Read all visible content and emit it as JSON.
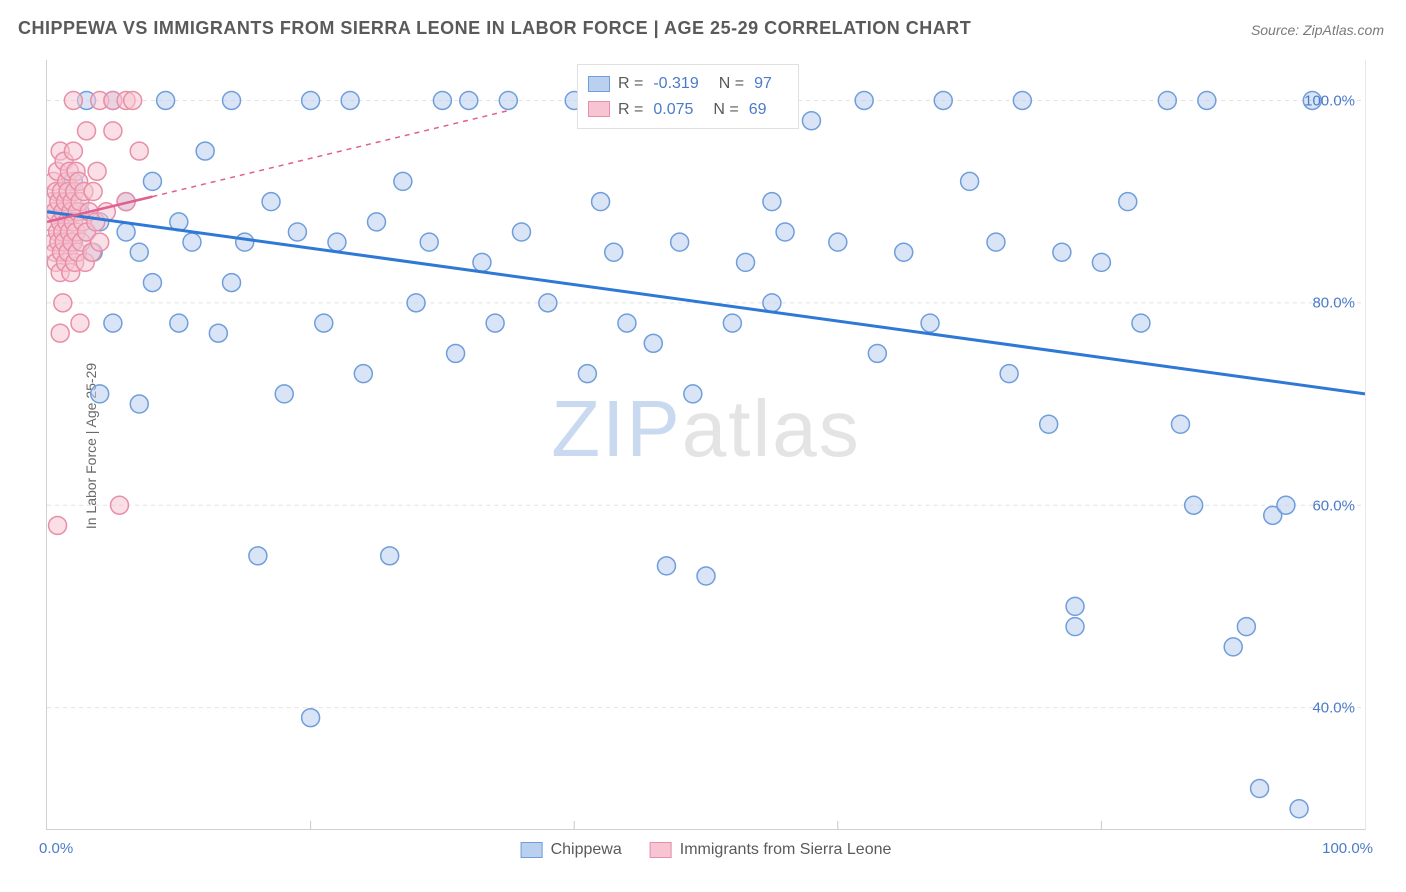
{
  "title": "CHIPPEWA VS IMMIGRANTS FROM SIERRA LEONE IN LABOR FORCE | AGE 25-29 CORRELATION CHART",
  "source_label": "Source: ZipAtlas.com",
  "y_axis_label": "In Labor Force | Age 25-29",
  "watermark": {
    "part1": "ZIP",
    "part2": "atlas"
  },
  "chart": {
    "type": "scatter",
    "xlim": [
      0,
      100
    ],
    "ylim": [
      28,
      104
    ],
    "y_ticks": [
      40,
      60,
      80,
      100
    ],
    "y_tick_labels": [
      "40.0%",
      "60.0%",
      "80.0%",
      "100.0%"
    ],
    "x_tick_labels": {
      "left": "0.0%",
      "right": "100.0%"
    },
    "x_minor_ticks": [
      20,
      40,
      60,
      80
    ],
    "background_color": "#ffffff",
    "grid_color": "#e2e2e2",
    "grid_dash": "4,4",
    "marker_radius": 9,
    "marker_stroke_width": 1.5,
    "series": [
      {
        "name": "Chippewa",
        "fill_color": "#b9d0ef",
        "stroke_color": "#6f9edb",
        "fill_opacity": 0.55,
        "trend": {
          "x1": 0,
          "y1": 89,
          "x2": 100,
          "y2": 71,
          "color": "#2e78d6",
          "width": 3,
          "dash": "none"
        },
        "points": [
          [
            1,
            88
          ],
          [
            1.5,
            90
          ],
          [
            2,
            86
          ],
          [
            2,
            92
          ],
          [
            2.5,
            89
          ],
          [
            3,
            87
          ],
          [
            3,
            100
          ],
          [
            3.5,
            85
          ],
          [
            4,
            88
          ],
          [
            4,
            71
          ],
          [
            5,
            78
          ],
          [
            5,
            100
          ],
          [
            6,
            87
          ],
          [
            6,
            90
          ],
          [
            7,
            85
          ],
          [
            7,
            70
          ],
          [
            8,
            82
          ],
          [
            8,
            92
          ],
          [
            9,
            100
          ],
          [
            10,
            78
          ],
          [
            10,
            88
          ],
          [
            11,
            86
          ],
          [
            12,
            95
          ],
          [
            13,
            77
          ],
          [
            14,
            82
          ],
          [
            14,
            100
          ],
          [
            15,
            86
          ],
          [
            16,
            55
          ],
          [
            17,
            90
          ],
          [
            18,
            71
          ],
          [
            19,
            87
          ],
          [
            20,
            100
          ],
          [
            20,
            39
          ],
          [
            21,
            78
          ],
          [
            22,
            86
          ],
          [
            23,
            100
          ],
          [
            24,
            73
          ],
          [
            25,
            88
          ],
          [
            26,
            55
          ],
          [
            27,
            92
          ],
          [
            28,
            80
          ],
          [
            29,
            86
          ],
          [
            30,
            100
          ],
          [
            31,
            75
          ],
          [
            32,
            100
          ],
          [
            33,
            84
          ],
          [
            34,
            78
          ],
          [
            35,
            100
          ],
          [
            36,
            87
          ],
          [
            38,
            80
          ],
          [
            40,
            100
          ],
          [
            41,
            73
          ],
          [
            42,
            90
          ],
          [
            43,
            85
          ],
          [
            44,
            78
          ],
          [
            45,
            100
          ],
          [
            46,
            76
          ],
          [
            47,
            54
          ],
          [
            48,
            86
          ],
          [
            49,
            71
          ],
          [
            50,
            100
          ],
          [
            50,
            53
          ],
          [
            52,
            78
          ],
          [
            53,
            84
          ],
          [
            55,
            80
          ],
          [
            55,
            90
          ],
          [
            56,
            100
          ],
          [
            56,
            87
          ],
          [
            58,
            98
          ],
          [
            60,
            86
          ],
          [
            62,
            100
          ],
          [
            63,
            75
          ],
          [
            65,
            85
          ],
          [
            67,
            78
          ],
          [
            68,
            100
          ],
          [
            70,
            92
          ],
          [
            72,
            86
          ],
          [
            73,
            73
          ],
          [
            74,
            100
          ],
          [
            76,
            68
          ],
          [
            77,
            85
          ],
          [
            78,
            50
          ],
          [
            78,
            48
          ],
          [
            80,
            84
          ],
          [
            82,
            90
          ],
          [
            83,
            78
          ],
          [
            85,
            100
          ],
          [
            86,
            68
          ],
          [
            87,
            60
          ],
          [
            88,
            100
          ],
          [
            90,
            46
          ],
          [
            91,
            48
          ],
          [
            92,
            32
          ],
          [
            93,
            59
          ],
          [
            94,
            60
          ],
          [
            95,
            30
          ],
          [
            96,
            100
          ]
        ]
      },
      {
        "name": "Immigrants from Sierra Leone",
        "fill_color": "#f6c4d2",
        "stroke_color": "#e88fa7",
        "fill_opacity": 0.55,
        "trend": {
          "x1": 0,
          "y1": 88,
          "x2": 8,
          "y2": 90.5,
          "color": "#e06090",
          "width": 2.5,
          "dash": "none",
          "ext": {
            "x1": 8,
            "y1": 90.5,
            "x2": 35,
            "y2": 99,
            "dash": "5,5",
            "width": 1.5
          }
        },
        "points": [
          [
            0.3,
            88
          ],
          [
            0.4,
            90
          ],
          [
            0.5,
            86
          ],
          [
            0.5,
            92
          ],
          [
            0.6,
            85
          ],
          [
            0.6,
            89
          ],
          [
            0.7,
            91
          ],
          [
            0.7,
            84
          ],
          [
            0.8,
            93
          ],
          [
            0.8,
            87
          ],
          [
            0.9,
            86
          ],
          [
            0.9,
            90
          ],
          [
            1,
            95
          ],
          [
            1,
            83
          ],
          [
            1,
            88
          ],
          [
            1.1,
            85
          ],
          [
            1.1,
            91
          ],
          [
            1.2,
            89
          ],
          [
            1.2,
            87
          ],
          [
            1.3,
            94
          ],
          [
            1.3,
            86
          ],
          [
            1.4,
            90
          ],
          [
            1.4,
            84
          ],
          [
            1.5,
            92
          ],
          [
            1.5,
            88
          ],
          [
            1.6,
            85
          ],
          [
            1.6,
            91
          ],
          [
            1.7,
            87
          ],
          [
            1.7,
            93
          ],
          [
            1.8,
            89
          ],
          [
            1.8,
            83
          ],
          [
            1.9,
            90
          ],
          [
            1.9,
            86
          ],
          [
            2,
            100
          ],
          [
            2,
            95
          ],
          [
            2,
            88
          ],
          [
            2.1,
            84
          ],
          [
            2.1,
            91
          ],
          [
            2.2,
            87
          ],
          [
            2.2,
            93
          ],
          [
            2.3,
            85
          ],
          [
            2.3,
            89
          ],
          [
            2.4,
            92
          ],
          [
            2.5,
            78
          ],
          [
            2.5,
            90
          ],
          [
            2.6,
            86
          ],
          [
            2.7,
            88
          ],
          [
            2.8,
            91
          ],
          [
            2.9,
            84
          ],
          [
            3,
            97
          ],
          [
            3,
            87
          ],
          [
            3.2,
            89
          ],
          [
            3.4,
            85
          ],
          [
            3.5,
            91
          ],
          [
            3.7,
            88
          ],
          [
            3.8,
            93
          ],
          [
            4,
            100
          ],
          [
            4,
            86
          ],
          [
            4.5,
            89
          ],
          [
            5,
            100
          ],
          [
            5,
            97
          ],
          [
            5.5,
            60
          ],
          [
            6,
            100
          ],
          [
            6,
            90
          ],
          [
            6.5,
            100
          ],
          [
            7,
            95
          ],
          [
            0.8,
            58
          ],
          [
            1,
            77
          ],
          [
            1.2,
            80
          ]
        ]
      }
    ]
  },
  "stats_legend": {
    "rows": [
      {
        "swatch_fill": "#b9d0ef",
        "swatch_stroke": "#6f9edb",
        "r_label": "R =",
        "r_val": "-0.319",
        "n_label": "N =",
        "n_val": "97"
      },
      {
        "swatch_fill": "#f6c4d2",
        "swatch_stroke": "#e88fa7",
        "r_label": "R =",
        "r_val": "0.075",
        "n_label": "N =",
        "n_val": "69"
      }
    ]
  },
  "bottom_legend": {
    "items": [
      {
        "swatch_fill": "#b9d0ef",
        "swatch_stroke": "#6f9edb",
        "label": "Chippewa"
      },
      {
        "swatch_fill": "#f6c4d2",
        "swatch_stroke": "#e88fa7",
        "label": "Immigrants from Sierra Leone"
      }
    ]
  }
}
